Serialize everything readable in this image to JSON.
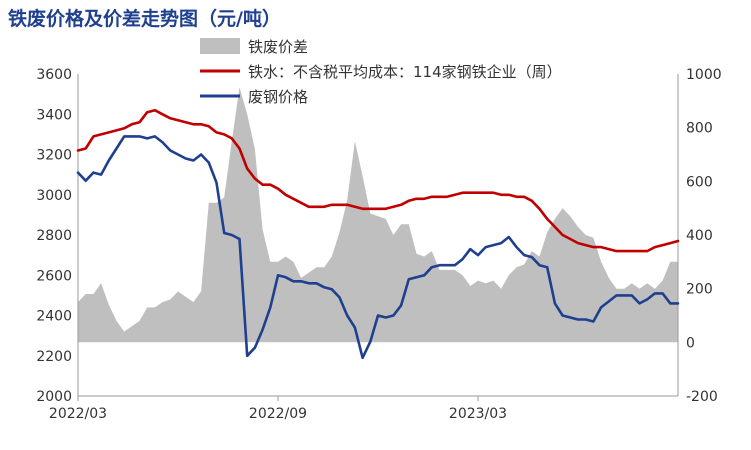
{
  "chart_data": {
    "type": "area+line",
    "title": "铁废价格及价差走势图（元/吨）",
    "x_ticks": [
      "2022/03",
      "2022/09",
      "2023/03"
    ],
    "y_left": {
      "min": 2000,
      "max": 3600,
      "step": 200,
      "ticks": [
        "2000",
        "2200",
        "2400",
        "2600",
        "2800",
        "3000",
        "3200",
        "3400",
        "3600"
      ]
    },
    "y_right": {
      "min": -200,
      "max": 1000,
      "step": 200,
      "ticks": [
        "-200",
        "0",
        "200",
        "400",
        "600",
        "800",
        "1000"
      ]
    },
    "grid": false,
    "legend_placement": "top-center",
    "series": [
      {
        "name": "铁废价差",
        "type": "area",
        "axis": "right",
        "color": "#bfbfbf",
        "values": [
          150,
          180,
          180,
          220,
          140,
          80,
          40,
          60,
          80,
          130,
          130,
          150,
          160,
          190,
          170,
          150,
          190,
          520,
          520,
          540,
          750,
          950,
          850,
          720,
          420,
          300,
          300,
          320,
          300,
          240,
          260,
          280,
          280,
          320,
          410,
          530,
          750,
          620,
          480,
          470,
          460,
          400,
          440,
          440,
          330,
          320,
          340,
          270,
          270,
          270,
          250,
          210,
          230,
          220,
          230,
          200,
          250,
          280,
          290,
          340,
          320,
          410,
          460,
          500,
          470,
          430,
          400,
          390,
          300,
          240,
          200,
          200,
          220,
          200,
          220,
          200,
          230,
          300,
          300
        ]
      },
      {
        "name": "铁水：不含税平均成本：114家钢铁企业（周）",
        "type": "line",
        "axis": "left",
        "color": "#c00000",
        "values": [
          3220,
          3230,
          3290,
          3300,
          3310,
          3320,
          3330,
          3350,
          3360,
          3410,
          3420,
          3400,
          3380,
          3370,
          3360,
          3350,
          3350,
          3340,
          3310,
          3300,
          3280,
          3230,
          3130,
          3080,
          3050,
          3050,
          3030,
          3000,
          2980,
          2960,
          2940,
          2940,
          2940,
          2950,
          2950,
          2950,
          2940,
          2930,
          2930,
          2930,
          2930,
          2940,
          2950,
          2970,
          2980,
          2980,
          2990,
          2990,
          2990,
          3000,
          3010,
          3010,
          3010,
          3010,
          3010,
          3000,
          3000,
          2990,
          2990,
          2970,
          2930,
          2880,
          2840,
          2800,
          2780,
          2760,
          2750,
          2740,
          2740,
          2730,
          2720,
          2720,
          2720,
          2720,
          2720,
          2740,
          2750,
          2760,
          2770
        ]
      },
      {
        "name": "废钢价格",
        "type": "line",
        "axis": "left",
        "color": "#1f3f8f",
        "values": [
          3110,
          3070,
          3110,
          3100,
          3170,
          3230,
          3290,
          3290,
          3290,
          3280,
          3290,
          3260,
          3220,
          3200,
          3180,
          3170,
          3200,
          3160,
          3060,
          2810,
          2800,
          2780,
          2200,
          2240,
          2330,
          2440,
          2600,
          2590,
          2570,
          2570,
          2560,
          2560,
          2540,
          2530,
          2490,
          2400,
          2340,
          2190,
          2270,
          2400,
          2390,
          2400,
          2450,
          2580,
          2590,
          2600,
          2640,
          2650,
          2650,
          2650,
          2680,
          2730,
          2700,
          2740,
          2750,
          2760,
          2790,
          2740,
          2700,
          2690,
          2650,
          2640,
          2460,
          2400,
          2390,
          2380,
          2380,
          2370,
          2440,
          2470,
          2500,
          2500,
          2500,
          2460,
          2480,
          2510,
          2510,
          2460,
          2460
        ]
      }
    ]
  }
}
